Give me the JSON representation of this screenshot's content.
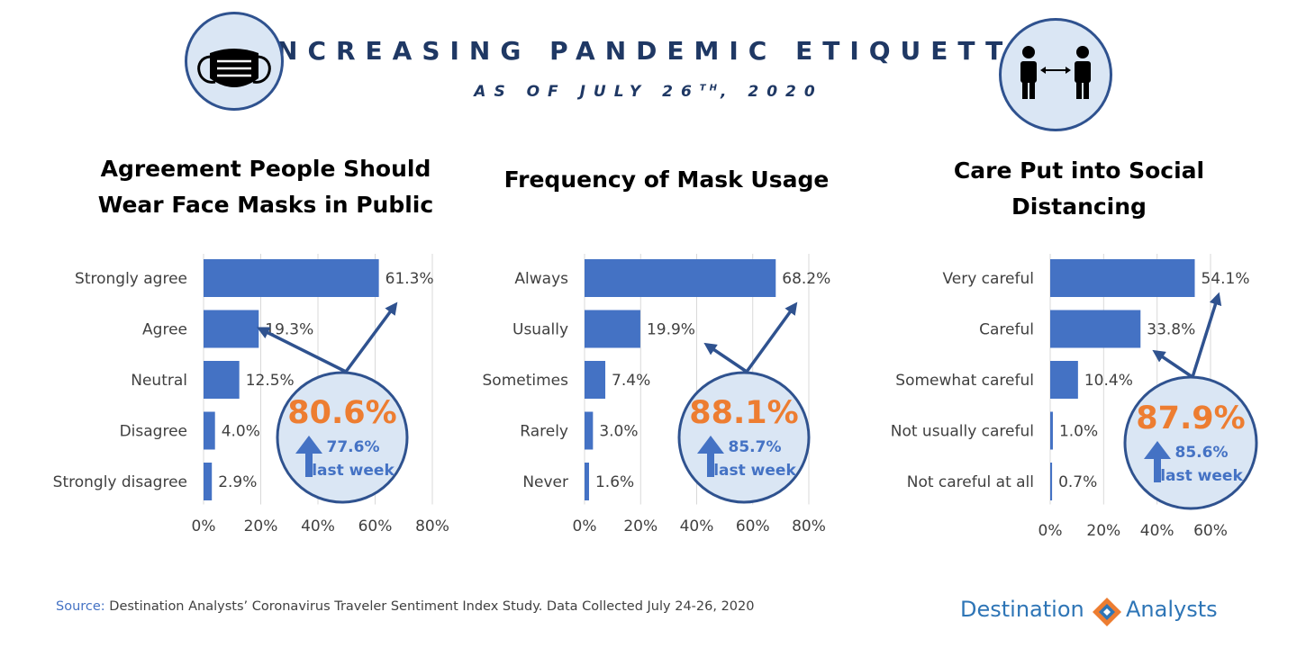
{
  "header": {
    "title": "INCREASING PANDEMIC ETIQUETTE",
    "subtitle_main": "AS OF JULY 26",
    "subtitle_sup": "TH",
    "subtitle_end": ", 2020"
  },
  "icons": {
    "left": "face-mask-icon",
    "right": "social-distancing-icon"
  },
  "colors": {
    "bar": "#4472c4",
    "highlight": "#ed7d31",
    "title": "#1f3864",
    "bubble_fill": "#dae6f4",
    "bubble_stroke": "#2f528f"
  },
  "chart_data": [
    {
      "type": "bar",
      "orientation": "horizontal",
      "title": "Agreement People Should Wear Face Masks in Public",
      "categories": [
        "Strongly agree",
        "Agree",
        "Neutral",
        "Disagree",
        "Strongly disagree"
      ],
      "values": [
        61.3,
        19.3,
        12.5,
        4.0,
        2.9
      ],
      "value_labels": [
        "61.3%",
        "19.3%",
        "12.5%",
        "4.0%",
        "2.9%"
      ],
      "xlim": [
        0,
        80
      ],
      "x_ticks": [
        "0%",
        "20%",
        "40%",
        "60%",
        "80%"
      ],
      "grid": true,
      "callout": {
        "value": "80.6%",
        "prior": "77.6%",
        "prior_label": "last week"
      }
    },
    {
      "type": "bar",
      "orientation": "horizontal",
      "title": "Frequency of Mask Usage",
      "categories": [
        "Always",
        "Usually",
        "Sometimes",
        "Rarely",
        "Never"
      ],
      "values": [
        68.2,
        19.9,
        7.4,
        3.0,
        1.6
      ],
      "value_labels": [
        "68.2%",
        "19.9%",
        "7.4%",
        "3.0%",
        "1.6%"
      ],
      "xlim": [
        0,
        80
      ],
      "x_ticks": [
        "0%",
        "20%",
        "40%",
        "60%",
        "80%"
      ],
      "grid": true,
      "callout": {
        "value": "88.1%",
        "prior": "85.7%",
        "prior_label": "last week"
      }
    },
    {
      "type": "bar",
      "orientation": "horizontal",
      "title": "Care Put into Social Distancing",
      "categories": [
        "Very careful",
        "Careful",
        "Somewhat careful",
        "Not usually careful",
        "Not careful at all"
      ],
      "values": [
        54.1,
        33.8,
        10.4,
        1.0,
        0.7
      ],
      "value_labels": [
        "54.1%",
        "33.8%",
        "10.4%",
        "1.0%",
        "0.7%"
      ],
      "xlim": [
        0,
        60
      ],
      "x_ticks": [
        "0%",
        "20%",
        "40%",
        "60%"
      ],
      "grid": true,
      "callout": {
        "value": "87.9%",
        "prior": "85.6%",
        "prior_label": "last week"
      }
    }
  ],
  "footer": {
    "source_label": "Source:",
    "source_text": " Destination Analysts’ Coronavirus Traveler Sentiment Index Study. Data Collected July 24-26, 2020",
    "logo_word1": "Destination",
    "logo_word2": "Analysts"
  }
}
